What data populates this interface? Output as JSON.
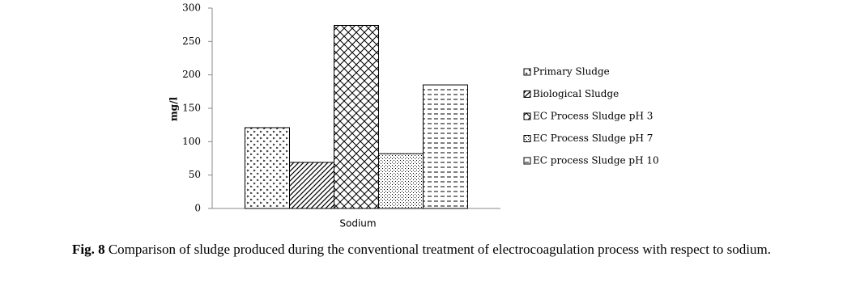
{
  "chart_data": {
    "type": "bar",
    "categories": [
      "Sodium"
    ],
    "y_label": "mg/l",
    "series": [
      {
        "name": "Primary Sludge",
        "color": "#000000",
        "pattern": "dots",
        "values": [
          121
        ]
      },
      {
        "name": "Biological Sludge",
        "color": "#000000",
        "pattern": "diagonal",
        "values": [
          69
        ]
      },
      {
        "name": "EC Process  Sludge pH 3",
        "color": "#000000",
        "pattern": "crosshatch",
        "values": [
          274
        ]
      },
      {
        "name": "EC Process Sludge pH 7",
        "color": "#000000",
        "pattern": "stipple",
        "values": [
          82
        ]
      },
      {
        "name": "EC process Sludge pH 10",
        "color": "#000000",
        "pattern": "dashes",
        "values": [
          185
        ]
      }
    ],
    "ylim": [
      0,
      300
    ],
    "yticks": [
      0,
      50,
      100,
      150,
      200,
      250,
      300
    ],
    "legend": "right",
    "caption_label": "Fig. 8",
    "caption": "Comparison of sludge produced during the conventional treatment of electrocoagulation process with respect to sodium."
  }
}
